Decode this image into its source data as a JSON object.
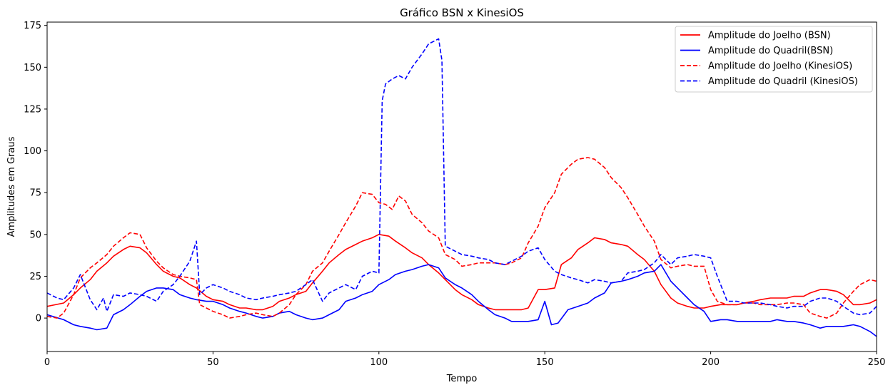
{
  "chart_data": {
    "type": "line",
    "title": "Gráfico BSN x KinesiOS",
    "xlabel": "Tempo",
    "ylabel": "Amplitudes em Graus",
    "xlim": [
      0,
      250
    ],
    "ylim": [
      -20,
      177
    ],
    "xticks": [
      0,
      50,
      100,
      150,
      200,
      250
    ],
    "yticks": [
      0,
      25,
      50,
      75,
      100,
      125,
      150,
      175
    ],
    "grid": false,
    "legend_position": "top-right",
    "series": [
      {
        "name": "Amplitude do Joelho (BSN)",
        "color": "#ff0000",
        "dash": "solid",
        "x": [
          0,
          5,
          8,
          10,
          13,
          15,
          18,
          20,
          23,
          25,
          28,
          30,
          33,
          35,
          38,
          40,
          43,
          45,
          48,
          50,
          53,
          55,
          58,
          60,
          63,
          65,
          68,
          70,
          73,
          75,
          78,
          80,
          83,
          85,
          88,
          90,
          93,
          95,
          98,
          100,
          103,
          105,
          108,
          110,
          113,
          115,
          118,
          120,
          123,
          125,
          128,
          130,
          133,
          135,
          138,
          140,
          143,
          145,
          148,
          150,
          153,
          155,
          158,
          160,
          163,
          165,
          168,
          170,
          173,
          175,
          178,
          180,
          183,
          185,
          188,
          190,
          193,
          195,
          198,
          200,
          203,
          205,
          208,
          210,
          213,
          215,
          218,
          220,
          223,
          225,
          228,
          230,
          233,
          235,
          238,
          240,
          243,
          245,
          248,
          250
        ],
        "values": [
          7,
          9,
          14,
          18,
          23,
          28,
          33,
          37,
          41,
          43,
          42,
          39,
          32,
          28,
          25,
          24,
          20,
          18,
          13,
          11,
          10,
          8,
          6,
          6,
          5,
          5,
          7,
          10,
          12,
          14,
          16,
          21,
          28,
          33,
          38,
          41,
          44,
          46,
          48,
          50,
          49,
          46,
          42,
          39,
          36,
          32,
          27,
          23,
          17,
          14,
          11,
          8,
          6,
          5,
          5,
          5,
          5,
          6,
          17,
          17,
          18,
          32,
          36,
          41,
          45,
          48,
          47,
          45,
          44,
          43,
          38,
          35,
          28,
          20,
          12,
          9,
          7,
          6,
          6,
          7,
          8,
          8,
          8,
          9,
          10,
          11,
          12,
          12,
          12,
          13,
          13,
          15,
          17,
          17,
          16,
          14,
          8,
          8,
          9,
          11
        ]
      },
      {
        "name": "Amplitude do Quadril(BSN)",
        "color": "#0000ff",
        "dash": "solid",
        "x": [
          0,
          5,
          8,
          10,
          13,
          15,
          18,
          20,
          23,
          25,
          28,
          30,
          33,
          35,
          38,
          40,
          43,
          45,
          48,
          50,
          53,
          55,
          58,
          60,
          63,
          65,
          68,
          70,
          73,
          75,
          78,
          80,
          83,
          85,
          88,
          90,
          93,
          95,
          98,
          100,
          103,
          105,
          108,
          110,
          113,
          115,
          118,
          120,
          123,
          125,
          128,
          130,
          133,
          135,
          138,
          140,
          143,
          145,
          148,
          150,
          152,
          154,
          157,
          160,
          163,
          165,
          168,
          170,
          173,
          175,
          178,
          180,
          183,
          185,
          188,
          190,
          193,
          195,
          198,
          200,
          203,
          205,
          208,
          210,
          213,
          215,
          218,
          220,
          223,
          225,
          228,
          230,
          233,
          235,
          238,
          240,
          243,
          245,
          248,
          250
        ],
        "values": [
          2,
          -1,
          -4,
          -5,
          -6,
          -7,
          -6,
          2,
          5,
          8,
          13,
          16,
          18,
          18,
          17,
          14,
          12,
          11,
          10,
          10,
          8,
          6,
          4,
          3,
          1,
          0,
          1,
          3,
          4,
          2,
          0,
          -1,
          0,
          2,
          5,
          10,
          12,
          14,
          16,
          20,
          23,
          26,
          28,
          29,
          31,
          32,
          30,
          24,
          20,
          18,
          14,
          10,
          5,
          2,
          0,
          -2,
          -2,
          -2,
          -1,
          10,
          -4,
          -3,
          5,
          7,
          9,
          12,
          15,
          21,
          22,
          23,
          25,
          27,
          28,
          32,
          22,
          18,
          12,
          8,
          4,
          -2,
          -1,
          -1,
          -2,
          -2,
          -2,
          -2,
          -2,
          -1,
          -2,
          -2,
          -3,
          -4,
          -6,
          -5,
          -5,
          -5,
          -4,
          -5,
          -8,
          -11
        ]
      },
      {
        "name": "Amplitude do Joelho (KinesiOS)",
        "color": "#ff0000",
        "dash": "dashed",
        "x": [
          0,
          3,
          5,
          8,
          10,
          13,
          15,
          18,
          20,
          23,
          25,
          28,
          30,
          33,
          35,
          38,
          40,
          43,
          45,
          46,
          48,
          50,
          53,
          55,
          58,
          60,
          63,
          65,
          68,
          70,
          73,
          75,
          78,
          80,
          83,
          85,
          88,
          90,
          93,
          95,
          98,
          100,
          102,
          104,
          106,
          108,
          110,
          113,
          115,
          118,
          120,
          123,
          125,
          128,
          130,
          133,
          135,
          138,
          140,
          143,
          145,
          148,
          150,
          153,
          155,
          158,
          160,
          163,
          165,
          168,
          170,
          173,
          175,
          178,
          180,
          183,
          185,
          188,
          190,
          193,
          195,
          198,
          200,
          202,
          205,
          208,
          210,
          213,
          215,
          218,
          220,
          223,
          225,
          228,
          230,
          233,
          235,
          238,
          240,
          243,
          245,
          248,
          250
        ],
        "values": [
          1,
          0,
          3,
          14,
          24,
          30,
          33,
          38,
          43,
          48,
          51,
          50,
          42,
          34,
          30,
          26,
          25,
          24,
          23,
          8,
          6,
          4,
          2,
          0,
          1,
          2,
          3,
          2,
          1,
          3,
          8,
          14,
          20,
          28,
          33,
          40,
          50,
          57,
          67,
          75,
          74,
          69,
          68,
          65,
          73,
          70,
          62,
          57,
          52,
          48,
          38,
          35,
          31,
          32,
          33,
          33,
          33,
          32,
          33,
          36,
          45,
          55,
          66,
          75,
          86,
          92,
          95,
          96,
          95,
          90,
          84,
          78,
          72,
          62,
          55,
          46,
          35,
          30,
          31,
          32,
          31,
          31,
          17,
          10,
          8,
          8,
          9,
          9,
          8,
          8,
          8,
          9,
          9,
          8,
          3,
          1,
          0,
          3,
          9,
          16,
          20,
          23,
          22
        ]
      },
      {
        "name": "Amplitude do Quadril (KinesiOS)",
        "color": "#0000ff",
        "dash": "dashed",
        "x": [
          0,
          3,
          5,
          8,
          10,
          13,
          15,
          17,
          18,
          20,
          23,
          25,
          28,
          30,
          33,
          35,
          38,
          40,
          43,
          45,
          46,
          48,
          50,
          53,
          55,
          58,
          60,
          63,
          65,
          68,
          70,
          73,
          75,
          78,
          80,
          83,
          85,
          88,
          90,
          93,
          95,
          98,
          100,
          101,
          102,
          104,
          106,
          108,
          110,
          113,
          115,
          118,
          119,
          120,
          123,
          125,
          128,
          130,
          133,
          135,
          138,
          140,
          143,
          145,
          148,
          150,
          153,
          155,
          158,
          160,
          163,
          165,
          168,
          170,
          173,
          175,
          178,
          180,
          183,
          185,
          188,
          190,
          193,
          195,
          198,
          200,
          202,
          205,
          208,
          210,
          213,
          215,
          218,
          220,
          223,
          225,
          228,
          230,
          233,
          235,
          238,
          240,
          243,
          245,
          248,
          250
        ],
        "values": [
          15,
          12,
          11,
          18,
          26,
          11,
          5,
          12,
          4,
          14,
          13,
          15,
          14,
          13,
          10,
          16,
          20,
          25,
          34,
          46,
          14,
          18,
          20,
          18,
          16,
          14,
          12,
          11,
          12,
          13,
          14,
          15,
          16,
          20,
          23,
          10,
          15,
          18,
          20,
          17,
          25,
          28,
          27,
          130,
          140,
          143,
          145,
          143,
          150,
          158,
          164,
          167,
          154,
          43,
          40,
          38,
          37,
          36,
          35,
          33,
          32,
          34,
          37,
          40,
          42,
          35,
          28,
          26,
          24,
          23,
          21,
          23,
          22,
          21,
          22,
          27,
          28,
          29,
          33,
          38,
          32,
          36,
          37,
          38,
          37,
          36,
          25,
          10,
          10,
          9,
          9,
          9,
          8,
          7,
          6,
          7,
          7,
          10,
          12,
          12,
          10,
          7,
          3,
          2,
          3,
          7
        ]
      }
    ]
  }
}
